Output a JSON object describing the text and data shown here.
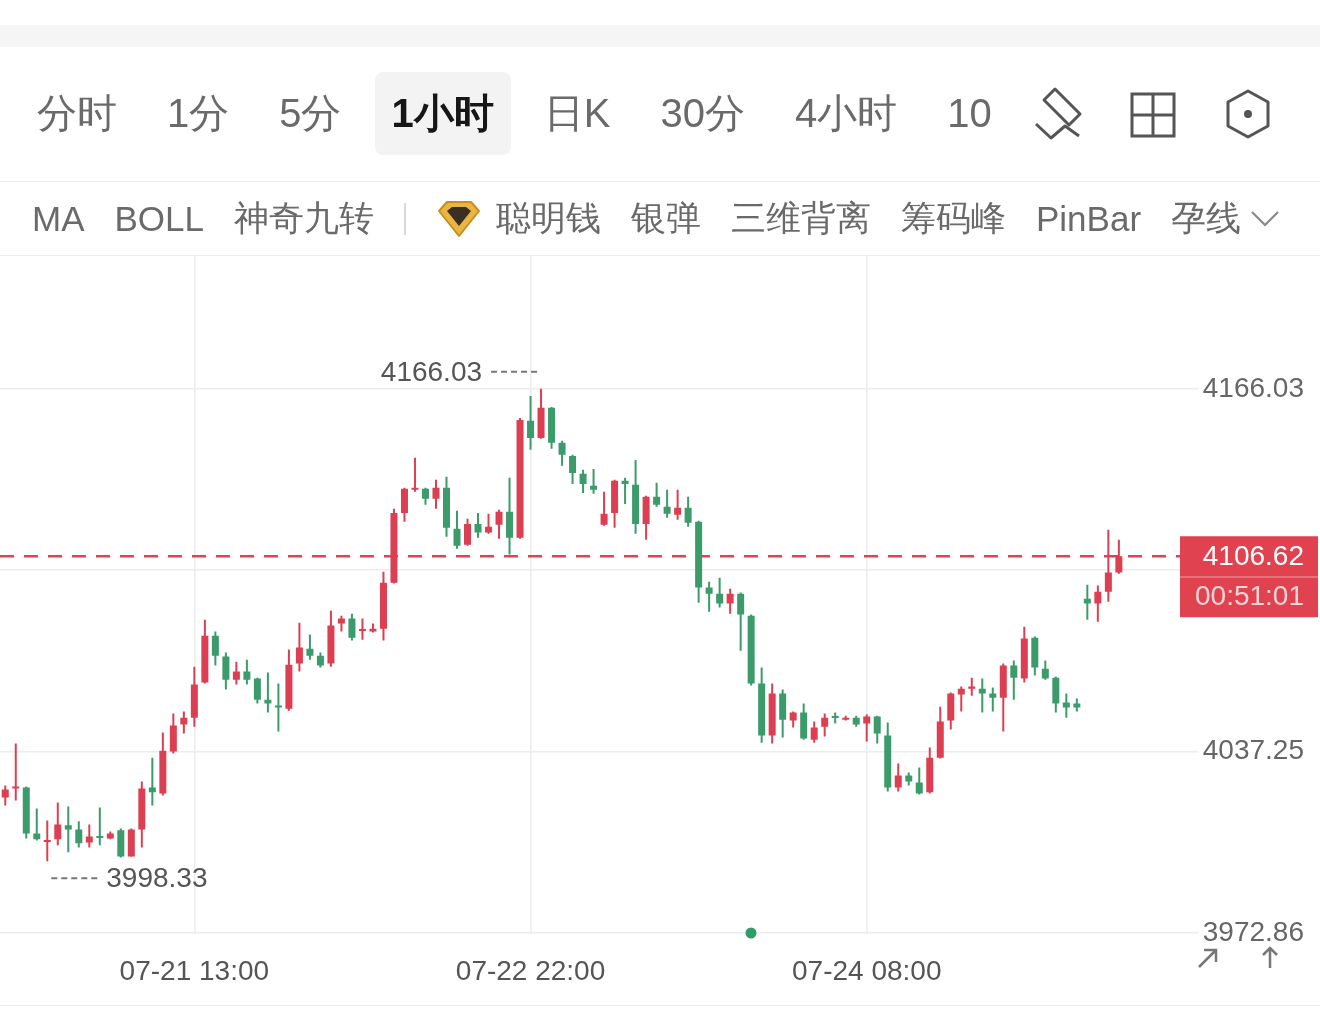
{
  "chart_data": {
    "type": "candlestick",
    "categories": [
      null,
      null,
      null,
      null,
      null,
      null,
      null,
      null,
      null,
      null,
      null,
      null,
      null,
      null,
      null,
      null,
      null,
      null,
      "07-21 13:00",
      null,
      null,
      null,
      null,
      null,
      null,
      null,
      null,
      null,
      null,
      null,
      null,
      null,
      null,
      null,
      null,
      null,
      null,
      null,
      null,
      null,
      null,
      null,
      null,
      null,
      null,
      null,
      null,
      null,
      null,
      null,
      "07-22 22:00",
      null,
      null,
      null,
      null,
      null,
      null,
      null,
      null,
      null,
      null,
      null,
      null,
      null,
      null,
      null,
      null,
      null,
      null,
      null,
      null,
      null,
      null,
      null,
      null,
      null,
      null,
      null,
      null,
      null,
      null,
      null,
      "07-24 08:00",
      null,
      null,
      null,
      null,
      null,
      null,
      null,
      null,
      null,
      null,
      null,
      null,
      null,
      null,
      null,
      null,
      null,
      null,
      null,
      null,
      null,
      null,
      null,
      null
    ],
    "ohlc": [
      [
        4021.0,
        4025.2,
        4018.1,
        4023.8
      ],
      [
        4024.2,
        4040.1,
        4019.9,
        4024.9
      ],
      [
        4024.5,
        4024.9,
        4006.4,
        4008.2
      ],
      [
        4008.2,
        4017.1,
        4005.7,
        4006.1
      ],
      [
        4005.4,
        4012.8,
        3998.33,
        4005.7
      ],
      [
        4006.1,
        4019.2,
        4004.0,
        4011.4
      ],
      [
        4011.1,
        4017.8,
        4001.5,
        4009.6
      ],
      [
        4009.6,
        4012.5,
        4003.2,
        4004.7
      ],
      [
        4005.0,
        4011.4,
        4003.2,
        4007.1
      ],
      [
        4007.1,
        4017.4,
        4004.0,
        4006.8
      ],
      [
        4006.4,
        4008.9,
        4006.1,
        4008.2
      ],
      [
        4009.3,
        4010.0,
        3999.7,
        4000.0
      ],
      [
        4000.0,
        4010.0,
        3999.9,
        4009.6
      ],
      [
        4009.6,
        4026.6,
        4003.2,
        4024.2
      ],
      [
        4024.5,
        4035.1,
        4018.1,
        4022.8
      ],
      [
        4022.4,
        4044.0,
        4021.7,
        4037.6
      ],
      [
        4037.3,
        4050.8,
        4036.6,
        4046.5
      ],
      [
        4046.9,
        4051.5,
        4043.7,
        4049.3
      ],
      [
        4049.3,
        4067.4,
        4046.1,
        4061.1
      ],
      [
        4061.8,
        4084.1,
        4061.4,
        4078.4
      ],
      [
        4078.4,
        4079.9,
        4067.8,
        4071.3
      ],
      [
        4071.0,
        4072.4,
        4059.3,
        4062.8
      ],
      [
        4062.8,
        4069.2,
        4061.1,
        4065.7
      ],
      [
        4065.7,
        4069.9,
        4061.1,
        4062.8
      ],
      [
        4063.2,
        4063.5,
        4054.3,
        4055.7
      ],
      [
        4055.7,
        4065.3,
        4051.1,
        4054.3
      ],
      [
        4053.6,
        4061.4,
        4044.4,
        4052.9
      ],
      [
        4052.5,
        4073.5,
        4051.8,
        4068.1
      ],
      [
        4068.5,
        4083.0,
        4065.7,
        4074.2
      ],
      [
        4073.8,
        4078.8,
        4069.9,
        4071.3
      ],
      [
        4071.3,
        4072.4,
        4067.1,
        4067.8
      ],
      [
        4068.5,
        4087.3,
        4067.4,
        4082.0
      ],
      [
        4082.7,
        4085.5,
        4079.9,
        4084.5
      ],
      [
        4084.5,
        4086.2,
        4076.7,
        4077.7
      ],
      [
        4080.2,
        4084.5,
        4077.0,
        4080.6
      ],
      [
        4079.9,
        4082.7,
        4079.5,
        4080.9
      ],
      [
        4080.9,
        4101.1,
        4076.7,
        4097.2
      ],
      [
        4097.2,
        4123.5,
        4096.9,
        4122.0
      ],
      [
        4122.0,
        4130.9,
        4118.9,
        4130.6
      ],
      [
        4130.2,
        4141.6,
        4129.5,
        4130.9
      ],
      [
        4130.6,
        4130.9,
        4124.9,
        4127.0
      ],
      [
        4127.0,
        4133.8,
        4123.5,
        4130.9
      ],
      [
        4130.9,
        4134.8,
        4113.5,
        4116.7
      ],
      [
        4116.4,
        4122.8,
        4109.3,
        4110.3
      ],
      [
        4110.7,
        4119.9,
        4110.3,
        4118.1
      ],
      [
        4118.1,
        4122.0,
        4113.2,
        4115.0
      ],
      [
        4115.0,
        4121.7,
        4114.6,
        4117.1
      ],
      [
        4117.8,
        4123.1,
        4112.8,
        4122.4
      ],
      [
        4122.4,
        4134.5,
        4107.2,
        4113.2
      ],
      [
        4113.2,
        4155.7,
        4112.8,
        4155.0
      ],
      [
        4154.7,
        4163.5,
        4144.4,
        4148.6
      ],
      [
        4148.6,
        4166.03,
        4148.3,
        4159.3
      ],
      [
        4159.3,
        4159.6,
        4144.8,
        4146.9
      ],
      [
        4146.9,
        4147.6,
        4138.7,
        4142.6
      ],
      [
        4142.2,
        4142.6,
        4132.3,
        4136.2
      ],
      [
        4135.9,
        4137.3,
        4129.1,
        4132.3
      ],
      [
        4131.6,
        4137.6,
        4128.8,
        4130.2
      ],
      [
        4117.8,
        4129.5,
        4117.4,
        4121.7
      ],
      [
        4122.0,
        4133.8,
        4116.7,
        4133.4
      ],
      [
        4133.4,
        4134.5,
        4125.2,
        4132.3
      ],
      [
        4132.0,
        4140.8,
        4114.6,
        4118.1
      ],
      [
        4118.1,
        4128.1,
        4112.5,
        4127.7
      ],
      [
        4127.7,
        4132.7,
        4124.2,
        4124.9
      ],
      [
        4124.2,
        4130.2,
        4120.3,
        4121.7
      ],
      [
        4121.3,
        4130.2,
        4119.6,
        4123.8
      ],
      [
        4123.8,
        4127.7,
        4117.1,
        4118.5
      ],
      [
        4118.9,
        4119.2,
        4090.1,
        4095.5
      ],
      [
        4095.5,
        4097.6,
        4086.9,
        4093.3
      ],
      [
        4093.3,
        4099.0,
        4088.4,
        4089.8
      ],
      [
        4089.8,
        4095.1,
        4086.2,
        4093.3
      ],
      [
        4093.3,
        4093.7,
        4073.1,
        4085.9
      ],
      [
        4085.5,
        4085.9,
        4060.7,
        4061.4
      ],
      [
        4061.4,
        4067.1,
        4040.4,
        4043.0
      ],
      [
        4043.0,
        4061.4,
        4040.1,
        4057.9
      ],
      [
        4057.9,
        4059.3,
        4042.3,
        4048.6
      ],
      [
        4048.3,
        4051.5,
        4045.8,
        4051.1
      ],
      [
        4051.1,
        4054.3,
        4041.5,
        4041.9
      ],
      [
        4041.5,
        4047.9,
        4040.4,
        4045.8
      ],
      [
        4046.1,
        4050.8,
        4042.6,
        4049.3
      ],
      [
        4049.7,
        4051.1,
        4047.2,
        4049.3
      ],
      [
        4048.6,
        4050.0,
        4048.3,
        4049.3
      ],
      [
        4049.3,
        4050.0,
        4046.1,
        4046.9
      ],
      [
        4047.2,
        4050.4,
        4040.8,
        4049.7
      ],
      [
        4049.7,
        4050.0,
        4040.1,
        4043.7
      ],
      [
        4043.0,
        4047.6,
        4023.1,
        4024.5
      ],
      [
        4024.5,
        4033.0,
        4023.1,
        4028.8
      ],
      [
        4028.8,
        4029.8,
        4025.2,
        4026.6
      ],
      [
        4026.3,
        4031.6,
        4022.0,
        4022.4
      ],
      [
        4022.8,
        4038.7,
        4022.4,
        4035.1
      ],
      [
        4035.1,
        4053.2,
        4034.8,
        4047.9
      ],
      [
        4048.3,
        4058.2,
        4045.1,
        4057.9
      ],
      [
        4057.5,
        4060.4,
        4051.5,
        4059.6
      ],
      [
        4059.6,
        4063.5,
        4057.1,
        4060.4
      ],
      [
        4059.6,
        4063.2,
        4051.1,
        4057.9
      ],
      [
        4057.9,
        4060.0,
        4051.5,
        4056.4
      ],
      [
        4056.4,
        4068.5,
        4044.4,
        4067.8
      ],
      [
        4067.8,
        4069.6,
        4055.7,
        4063.5
      ],
      [
        4063.2,
        4081.6,
        4061.8,
        4077.4
      ],
      [
        4077.7,
        4078.1,
        4064.3,
        4067.1
      ],
      [
        4066.7,
        4069.6,
        4062.8,
        4063.2
      ],
      [
        4063.5,
        4063.9,
        4051.1,
        4054.3
      ],
      [
        4054.7,
        4057.9,
        4049.3,
        4052.9
      ],
      [
        4054.3,
        4056.1,
        4051.5,
        4052.9
      ],
      [
        4091.5,
        4096.5,
        4084.1,
        4089.8
      ],
      [
        4089.8,
        4096.2,
        4083.4,
        4094.0
      ],
      [
        4094.0,
        4116.0,
        4090.5,
        4100.8
      ],
      [
        4100.8,
        4112.5,
        4100.4,
        4106.62
      ]
    ],
    "colors": [
      "#dd3f52",
      "#dd3f52",
      "#3c9b6b",
      "#3c9b6b",
      "#dd3f52",
      "#dd3f52",
      "#3c9b6b",
      "#3c9b6b",
      "#dd3f52",
      "#3c9b6b",
      "#dd3f52",
      "#3c9b6b",
      "#dd3f52",
      "#dd3f52",
      "#3c9b6b",
      "#dd3f52",
      "#dd3f52",
      "#dd3f52",
      "#dd3f52",
      "#dd3f52",
      "#3c9b6b",
      "#3c9b6b",
      "#dd3f52",
      "#3c9b6b",
      "#3c9b6b",
      "#3c9b6b",
      "#3c9b6b",
      "#dd3f52",
      "#dd3f52",
      "#3c9b6b",
      "#3c9b6b",
      "#dd3f52",
      "#dd3f52",
      "#3c9b6b",
      "#dd3f52",
      "#dd3f52",
      "#dd3f52",
      "#dd3f52",
      "#dd3f52",
      "#dd3f52",
      "#3c9b6b",
      "#dd3f52",
      "#3c9b6b",
      "#3c9b6b",
      "#dd3f52",
      "#3c9b6b",
      "#dd3f52",
      "#dd3f52",
      "#3c9b6b",
      "#dd3f52",
      "#3c9b6b",
      "#dd3f52",
      "#3c9b6b",
      "#3c9b6b",
      "#3c9b6b",
      "#3c9b6b",
      "#3c9b6b",
      "#dd3f52",
      "#dd3f52",
      "#3c9b6b",
      "#3c9b6b",
      "#dd3f52",
      "#3c9b6b",
      "#3c9b6b",
      "#dd3f52",
      "#3c9b6b",
      "#3c9b6b",
      "#3c9b6b",
      "#3c9b6b",
      "#dd3f52",
      "#3c9b6b",
      "#3c9b6b",
      "#3c9b6b",
      "#dd3f52",
      "#3c9b6b",
      "#dd3f52",
      "#3c9b6b",
      "#dd3f52",
      "#dd3f52",
      "#3c9b6b",
      "#dd3f52",
      "#3c9b6b",
      "#dd3f52",
      "#3c9b6b",
      "#3c9b6b",
      "#dd3f52",
      "#3c9b6b",
      "#3c9b6b",
      "#dd3f52",
      "#dd3f52",
      "#dd3f52",
      "#dd3f52",
      "#dd3f52",
      "#3c9b6b",
      "#3c9b6b",
      "#dd3f52",
      "#3c9b6b",
      "#dd3f52",
      "#3c9b6b",
      "#3c9b6b",
      "#3c9b6b",
      "#3c9b6b",
      "#3c9b6b",
      "#3c9b6b",
      "#dd3f52",
      "#dd3f52",
      "#dd3f52"
    ],
    "ylim": [
      3972.86,
      4213.2
    ],
    "yticks": [
      3972.86,
      4037.25,
      {
        "value": 4101.64,
        "label": null
      },
      4166.03
    ],
    "grid": true,
    "ref_lines": [
      {
        "axis": "y",
        "value": 4106.62,
        "label": "4106.62",
        "color": "#e0424f",
        "line_style": "dashed"
      }
    ],
    "annotations": [
      "分时",
      "1分",
      "5分",
      "1小时",
      "日K",
      "30分",
      "4小时",
      "10",
      "MA",
      "BOLL",
      "神奇九转",
      "聪明钱",
      "银弹",
      "三维背离",
      "筹码峰",
      "PinBar",
      "孕线",
      "4166.03",
      "3998.33",
      "00:51:01"
    ]
  }
}
